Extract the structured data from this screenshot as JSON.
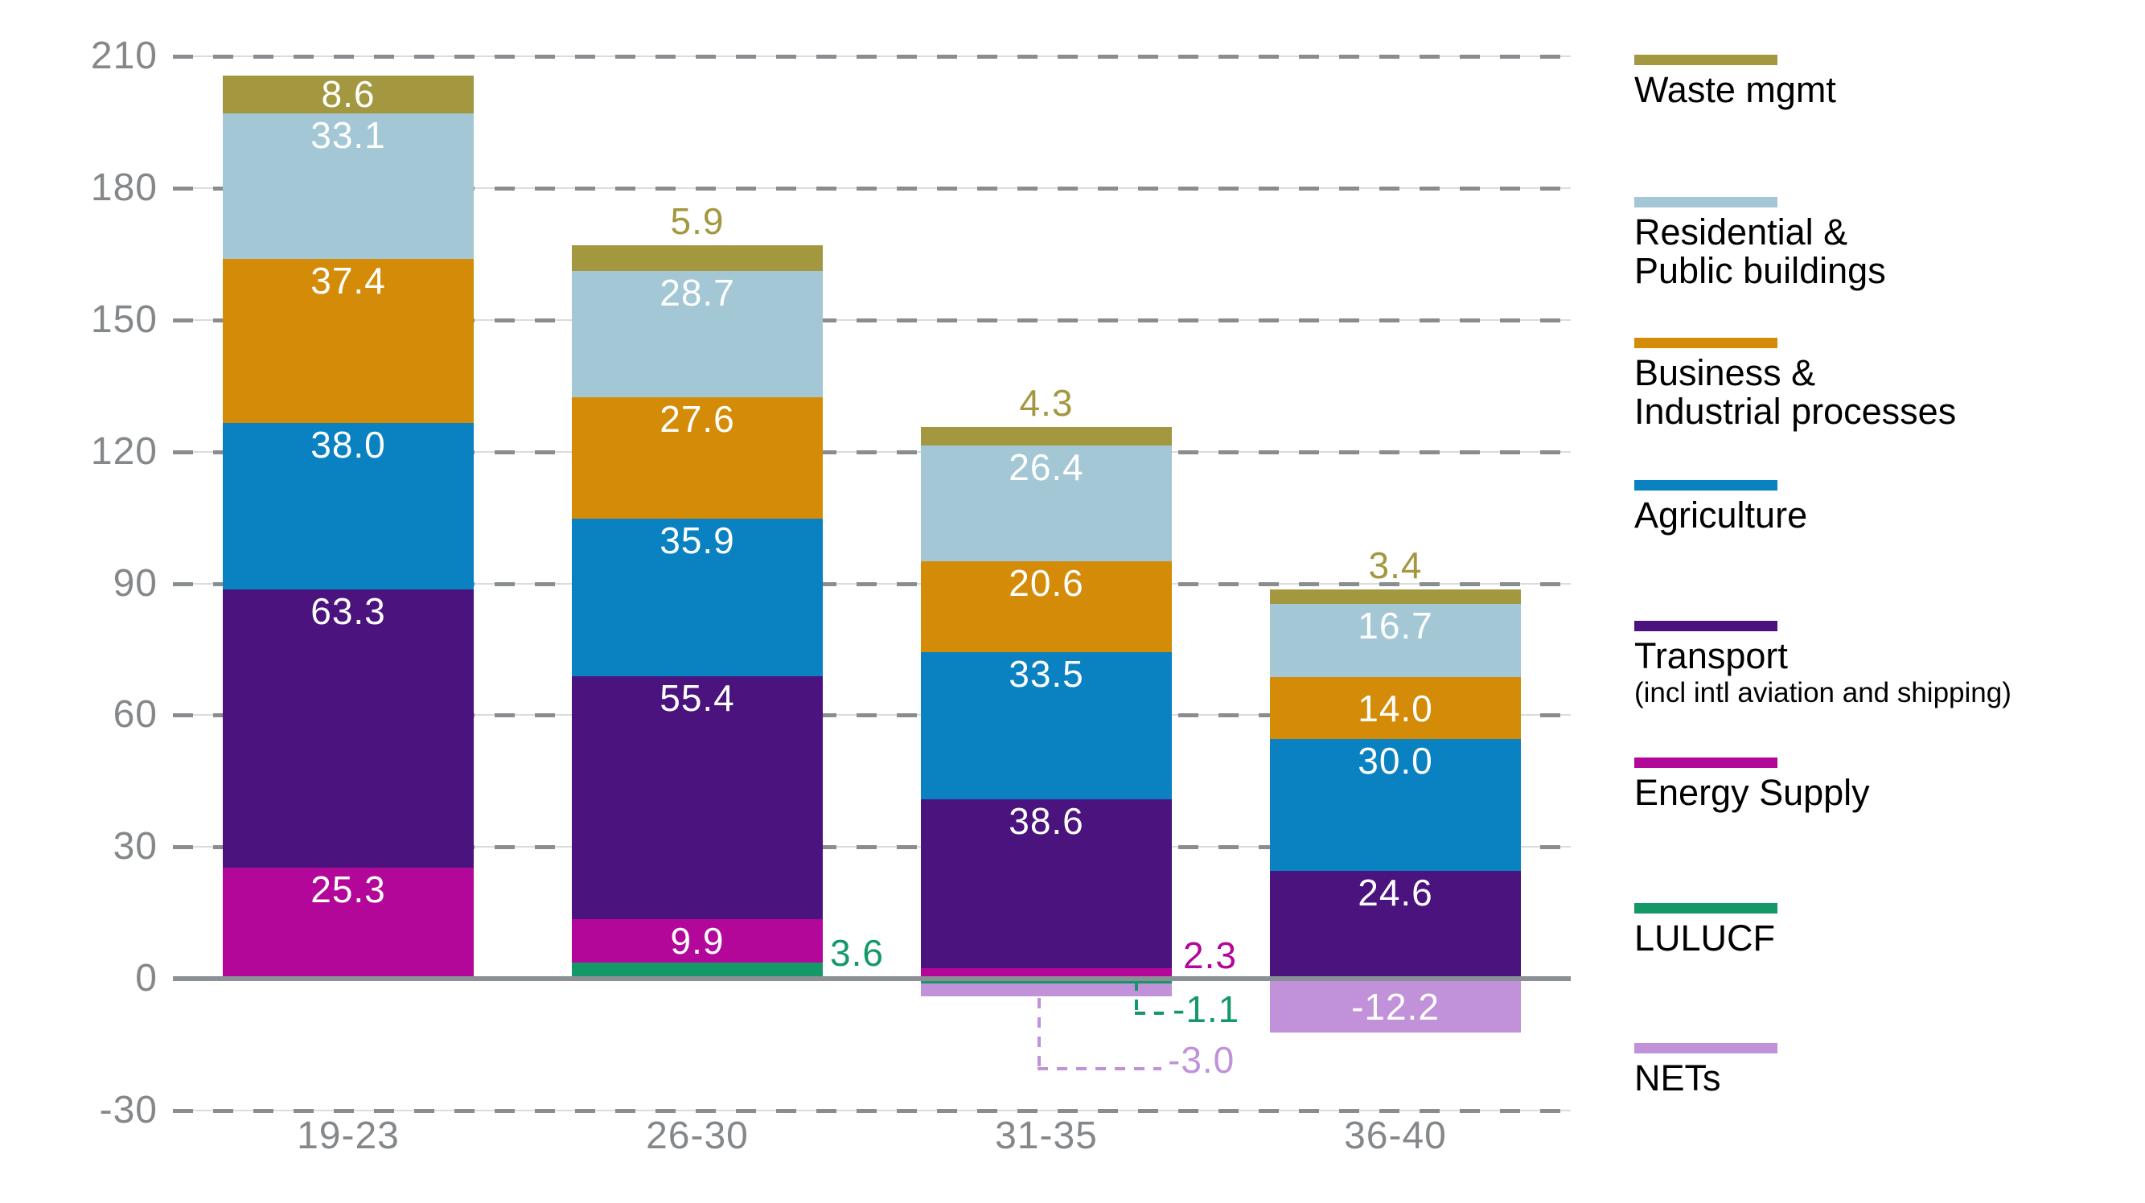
{
  "chart_data": {
    "type": "bar",
    "variant": "stacked-columns-with-negatives",
    "title": "",
    "xlabel": "",
    "ylabel": "",
    "categories": [
      "19-23",
      "26-30",
      "31-35",
      "36-40"
    ],
    "y_axis": {
      "min": -30,
      "max": 210,
      "step": 30,
      "tick_labels": [
        "210",
        "180",
        "150",
        "120",
        "90",
        "60",
        "30",
        "0",
        "-30"
      ],
      "gridlines": "dashed",
      "zero_line_solid": true
    },
    "legend_position": "right",
    "positive_stack_order_bottom_up": [
      "lulucf",
      "energy",
      "transport",
      "agriculture",
      "business",
      "residential",
      "waste"
    ],
    "negative_stack_order_top_down": [
      "lulucf",
      "nets"
    ],
    "sectors": [
      {
        "id": "waste",
        "name_lines": [
          "Waste mgmt"
        ],
        "color": "#a39840",
        "values": [
          8.6,
          5.9,
          4.3,
          3.4
        ],
        "display": [
          "8.6",
          "5.9",
          "4.3",
          "3.4"
        ],
        "label_pos": [
          "inside",
          "above",
          "above",
          "above"
        ]
      },
      {
        "id": "residential",
        "name_lines": [
          "Residential &",
          "Public buildings"
        ],
        "color": "#a3c7d4",
        "values": [
          33.1,
          28.7,
          26.4,
          16.7
        ],
        "display": [
          "33.1",
          "28.7",
          "26.4",
          "16.7"
        ],
        "label_pos": [
          "inside",
          "inside",
          "inside",
          "inside"
        ]
      },
      {
        "id": "business",
        "name_lines": [
          "Business &",
          "Industrial processes"
        ],
        "color": "#d48c08",
        "values": [
          37.4,
          27.6,
          20.6,
          14.0
        ],
        "display": [
          "37.4",
          "27.6",
          "20.6",
          "14.0"
        ],
        "label_pos": [
          "inside",
          "inside",
          "inside",
          "inside"
        ]
      },
      {
        "id": "agriculture",
        "name_lines": [
          "Agriculture"
        ],
        "color": "#0a82c2",
        "values": [
          38.0,
          35.9,
          33.5,
          30.0
        ],
        "display": [
          "38.0",
          "35.9",
          "33.5",
          "30.0"
        ],
        "label_pos": [
          "inside",
          "inside",
          "inside",
          "inside"
        ]
      },
      {
        "id": "transport",
        "name_lines": [
          "Transport"
        ],
        "sub_label": "(incl intl aviation and shipping)",
        "color": "#4a137d",
        "values": [
          63.3,
          55.4,
          38.6,
          24.6
        ],
        "display": [
          "63.3",
          "55.4",
          "38.6",
          "24.6"
        ],
        "label_pos": [
          "inside",
          "inside",
          "inside",
          "inside"
        ]
      },
      {
        "id": "energy",
        "name_lines": [
          "Energy Supply"
        ],
        "color": "#b30799",
        "values": [
          25.3,
          9.9,
          2.3,
          null
        ],
        "display": [
          "25.3",
          "9.9",
          "2.3",
          null
        ],
        "label_pos": [
          "inside",
          "inside",
          "right",
          null
        ]
      },
      {
        "id": "lulucf",
        "name_lines": [
          "LULUCF"
        ],
        "color": "#149868",
        "values": [
          null,
          3.6,
          -1.1,
          null
        ],
        "display": [
          null,
          "3.6",
          "-1.1",
          null
        ],
        "label_pos": [
          null,
          "right",
          "leader",
          null
        ]
      },
      {
        "id": "nets",
        "name_lines": [
          "NETs"
        ],
        "color": "#c191d9",
        "values": [
          null,
          null,
          -3.0,
          -12.2
        ],
        "display": [
          null,
          null,
          "-3.0",
          "-12.2"
        ],
        "label_pos": [
          null,
          null,
          "leader",
          "inside"
        ]
      }
    ]
  },
  "colors": {
    "background": "#ffffff",
    "axis_text": "#85888b",
    "grid_dash": "#8a8d90",
    "grid_thin": "#dadbdc",
    "zero_line": "#8a9096",
    "value_label_inside": "#ffffff",
    "legend_text": "#000000"
  }
}
